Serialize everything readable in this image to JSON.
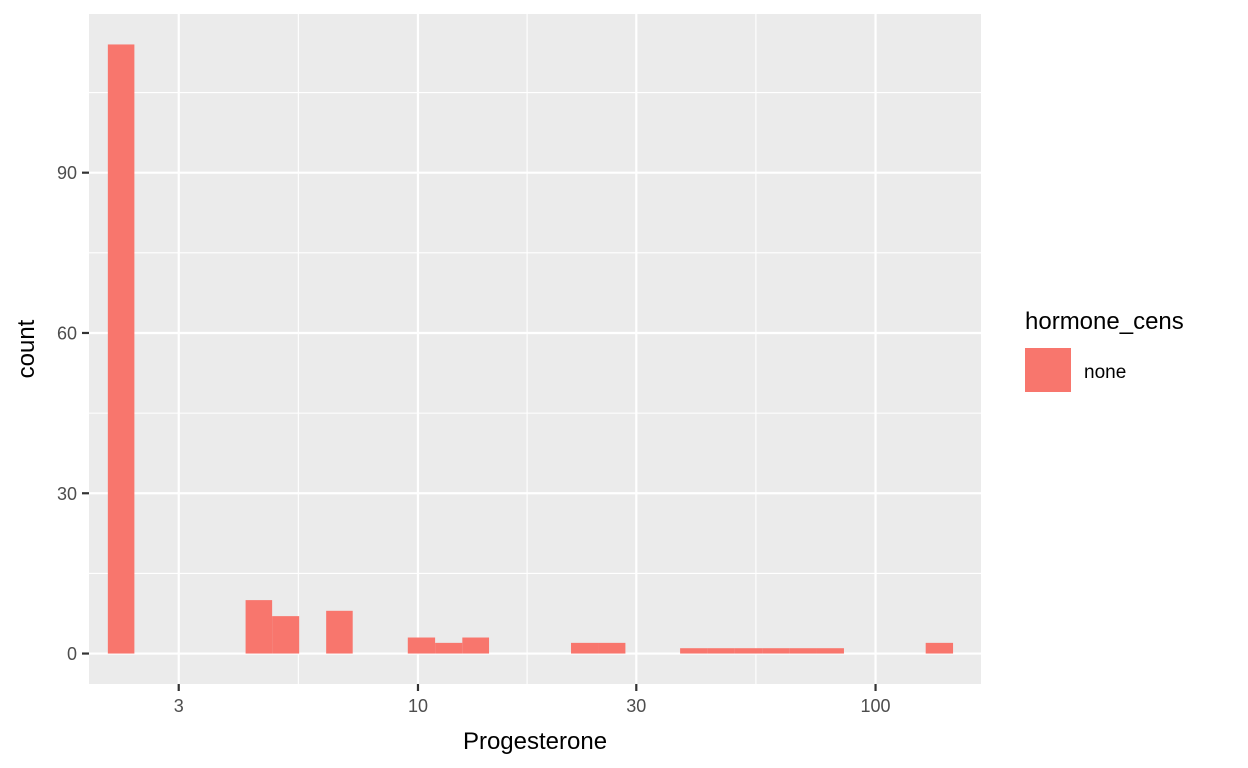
{
  "chart_data": {
    "type": "bar",
    "title": "",
    "xlabel": "Progesterone",
    "ylabel": "count",
    "x_scale": "log10",
    "x_ticks": [
      3,
      10,
      30,
      100
    ],
    "x_tick_labels": [
      "3",
      "10",
      "30",
      "100"
    ],
    "y_ticks": [
      0,
      30,
      60,
      90
    ],
    "y_tick_labels": [
      "0",
      "30",
      "60",
      "90"
    ],
    "xlim": [
      1.91,
      170
    ],
    "ylim": [
      -5.7,
      119.7
    ],
    "grid": true,
    "legend": {
      "title": "hormone_cens",
      "position": "right",
      "entries": [
        {
          "label": "none",
          "color": "#F8766D"
        }
      ]
    },
    "series": [
      {
        "name": "none",
        "color": "#F8766D",
        "bins": [
          {
            "x_start": 2.1,
            "x_end": 2.4,
            "count": 114
          },
          {
            "x_start": 4.2,
            "x_end": 4.8,
            "count": 10
          },
          {
            "x_start": 4.8,
            "x_end": 5.5,
            "count": 7
          },
          {
            "x_start": 6.3,
            "x_end": 7.2,
            "count": 8
          },
          {
            "x_start": 9.5,
            "x_end": 10.9,
            "count": 3
          },
          {
            "x_start": 10.9,
            "x_end": 12.5,
            "count": 2
          },
          {
            "x_start": 12.5,
            "x_end": 14.3,
            "count": 3
          },
          {
            "x_start": 21.6,
            "x_end": 24.8,
            "count": 2
          },
          {
            "x_start": 24.8,
            "x_end": 28.4,
            "count": 2
          },
          {
            "x_start": 37.4,
            "x_end": 42.9,
            "count": 1
          },
          {
            "x_start": 42.9,
            "x_end": 49.2,
            "count": 1
          },
          {
            "x_start": 49.2,
            "x_end": 56.5,
            "count": 1
          },
          {
            "x_start": 56.5,
            "x_end": 64.8,
            "count": 1
          },
          {
            "x_start": 64.8,
            "x_end": 74.3,
            "count": 1
          },
          {
            "x_start": 74.3,
            "x_end": 85.3,
            "count": 1
          },
          {
            "x_start": 128.7,
            "x_end": 147.7,
            "count": 2
          }
        ]
      }
    ],
    "colors": {
      "panel_background": "#EBEBEB",
      "grid_major": "#FFFFFF",
      "bar_fill": "#F8766D"
    }
  }
}
